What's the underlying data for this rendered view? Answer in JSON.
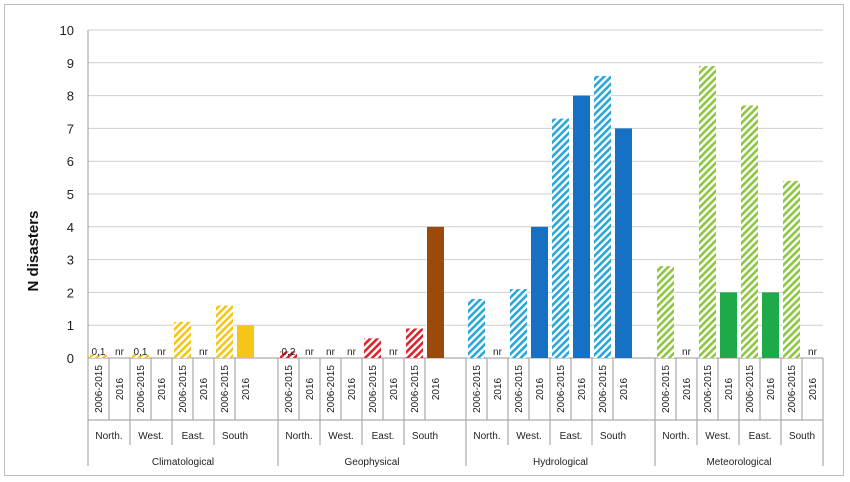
{
  "chart_data": {
    "type": "bar",
    "ylabel": "N disasters",
    "ylim": [
      0,
      10
    ],
    "yticks": [
      "0",
      "1",
      "2",
      "3",
      "4",
      "5",
      "6",
      "7",
      "8",
      "9",
      "10"
    ],
    "grid": true,
    "period_labels": [
      "2006-2015",
      "2016"
    ],
    "groups": [
      {
        "name": "Climatological",
        "color": "#f5c518",
        "regions": [
          {
            "name": "North.",
            "values": [
              0.1,
              null
            ],
            "value_labels": [
              "0,1",
              "nr"
            ]
          },
          {
            "name": "West.",
            "values": [
              0.1,
              null
            ],
            "value_labels": [
              "0,1",
              "nr"
            ]
          },
          {
            "name": "East.",
            "values": [
              1.1,
              null
            ],
            "value_labels": [
              "",
              "nr"
            ]
          },
          {
            "name": "South",
            "values": [
              1.6,
              1.0
            ],
            "value_labels": [
              "",
              ""
            ]
          }
        ]
      },
      {
        "name": "Geophysical",
        "color": "#d9262e",
        "solid_color": "#9c4a0c",
        "regions": [
          {
            "name": "North.",
            "values": [
              0.2,
              null
            ],
            "value_labels": [
              "0,2",
              "nr"
            ]
          },
          {
            "name": "West.",
            "values": [
              null,
              null
            ],
            "value_labels": [
              "nr",
              "nr"
            ]
          },
          {
            "name": "East.",
            "values": [
              0.6,
              null
            ],
            "value_labels": [
              "",
              "nr"
            ]
          },
          {
            "name": "South",
            "values": [
              0.9,
              4.0
            ],
            "value_labels": [
              "",
              ""
            ]
          }
        ]
      },
      {
        "name": "Hydrological",
        "color": "#2aa7d9",
        "solid_color": "#1671c4",
        "regions": [
          {
            "name": "North.",
            "values": [
              1.8,
              null
            ],
            "value_labels": [
              "",
              "nr"
            ]
          },
          {
            "name": "West.",
            "values": [
              2.1,
              4.0
            ],
            "value_labels": [
              "",
              ""
            ]
          },
          {
            "name": "East.",
            "values": [
              7.3,
              8.0
            ],
            "value_labels": [
              "",
              ""
            ]
          },
          {
            "name": "South",
            "values": [
              8.6,
              7.0
            ],
            "value_labels": [
              "",
              ""
            ]
          }
        ]
      },
      {
        "name": "Meteorological",
        "color": "#8dc63f",
        "solid_color": "#1faa4a",
        "regions": [
          {
            "name": "North.",
            "values": [
              2.8,
              null
            ],
            "value_labels": [
              "",
              "nr"
            ]
          },
          {
            "name": "West.",
            "values": [
              8.9,
              2.0
            ],
            "value_labels": [
              "",
              ""
            ]
          },
          {
            "name": "East.",
            "values": [
              7.7,
              2.0
            ],
            "value_labels": [
              "",
              ""
            ]
          },
          {
            "name": "South",
            "values": [
              5.4,
              null
            ],
            "value_labels": [
              "",
              "nr"
            ]
          }
        ]
      }
    ]
  }
}
